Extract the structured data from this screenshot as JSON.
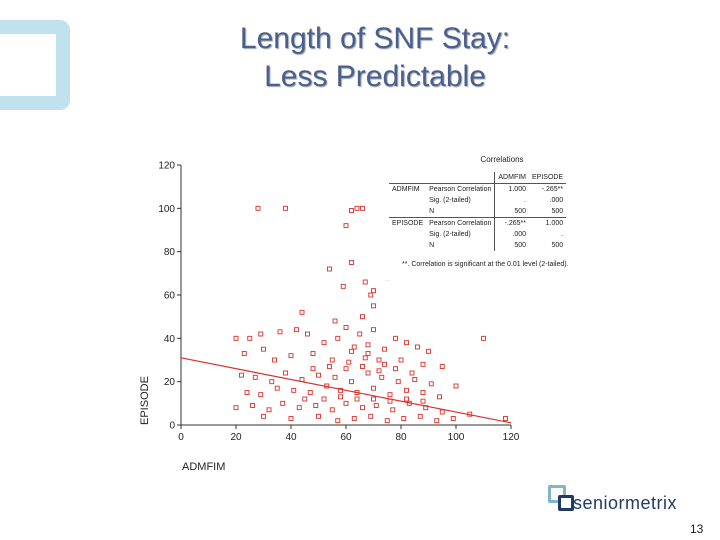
{
  "title_lines": [
    "Length of SNF Stay:",
    "Less Predictable"
  ],
  "chart_data": {
    "type": "scatter",
    "xlabel": "ADMFIM",
    "ylabel": "EPISODE",
    "xlim": [
      0,
      120
    ],
    "ylim": [
      0,
      120
    ],
    "x_ticks": [
      0,
      20,
      40,
      60,
      80,
      100,
      120
    ],
    "y_ticks": [
      0,
      20,
      40,
      60,
      80,
      100,
      120
    ],
    "marker_color": "#d9302a",
    "fit_line": {
      "x": [
        0,
        120
      ],
      "y": [
        31,
        1
      ]
    },
    "points": [
      [
        28,
        100
      ],
      [
        38,
        100
      ],
      [
        62,
        99
      ],
      [
        64,
        100
      ],
      [
        66,
        100
      ],
      [
        60,
        92
      ],
      [
        54,
        72
      ],
      [
        62,
        75
      ],
      [
        59,
        64
      ],
      [
        67,
        66
      ],
      [
        70,
        62
      ],
      [
        69,
        60
      ],
      [
        75,
        68
      ],
      [
        110,
        40
      ],
      [
        20,
        40
      ],
      [
        25,
        40
      ],
      [
        29,
        42
      ],
      [
        36,
        43
      ],
      [
        42,
        44
      ],
      [
        46,
        42
      ],
      [
        60,
        45
      ],
      [
        65,
        42
      ],
      [
        70,
        44
      ],
      [
        78,
        40
      ],
      [
        52,
        38
      ],
      [
        57,
        40
      ],
      [
        63,
        36
      ],
      [
        68,
        37
      ],
      [
        74,
        35
      ],
      [
        82,
        38
      ],
      [
        86,
        36
      ],
      [
        90,
        34
      ],
      [
        23,
        33
      ],
      [
        30,
        35
      ],
      [
        34,
        30
      ],
      [
        40,
        32
      ],
      [
        48,
        33
      ],
      [
        55,
        30
      ],
      [
        61,
        29
      ],
      [
        67,
        31
      ],
      [
        72,
        30
      ],
      [
        80,
        30
      ],
      [
        88,
        28
      ],
      [
        95,
        27
      ],
      [
        22,
        23
      ],
      [
        27,
        22
      ],
      [
        33,
        20
      ],
      [
        38,
        24
      ],
      [
        44,
        21
      ],
      [
        50,
        23
      ],
      [
        56,
        22
      ],
      [
        62,
        20
      ],
      [
        68,
        24
      ],
      [
        73,
        22
      ],
      [
        79,
        20
      ],
      [
        85,
        21
      ],
      [
        91,
        19
      ],
      [
        100,
        18
      ],
      [
        24,
        15
      ],
      [
        29,
        14
      ],
      [
        35,
        17
      ],
      [
        41,
        16
      ],
      [
        47,
        15
      ],
      [
        53,
        18
      ],
      [
        58,
        16
      ],
      [
        64,
        15
      ],
      [
        70,
        17
      ],
      [
        76,
        14
      ],
      [
        82,
        16
      ],
      [
        88,
        15
      ],
      [
        94,
        13
      ],
      [
        20,
        8
      ],
      [
        26,
        9
      ],
      [
        32,
        7
      ],
      [
        37,
        10
      ],
      [
        43,
        8
      ],
      [
        49,
        9
      ],
      [
        55,
        7
      ],
      [
        60,
        10
      ],
      [
        66,
        8
      ],
      [
        71,
        9
      ],
      [
        77,
        7
      ],
      [
        83,
        10
      ],
      [
        89,
        8
      ],
      [
        95,
        6
      ],
      [
        105,
        5
      ],
      [
        118,
        3
      ],
      [
        30,
        4
      ],
      [
        40,
        3
      ],
      [
        50,
        4
      ],
      [
        57,
        2
      ],
      [
        63,
        3
      ],
      [
        69,
        4
      ],
      [
        75,
        2
      ],
      [
        81,
        3
      ],
      [
        87,
        4
      ],
      [
        93,
        2
      ],
      [
        99,
        3
      ],
      [
        45,
        12
      ],
      [
        52,
        12
      ],
      [
        58,
        13
      ],
      [
        64,
        12
      ],
      [
        70,
        12
      ],
      [
        76,
        11
      ],
      [
        82,
        12
      ],
      [
        88,
        11
      ],
      [
        48,
        26
      ],
      [
        54,
        27
      ],
      [
        60,
        26
      ],
      [
        66,
        27
      ],
      [
        72,
        25
      ],
      [
        78,
        26
      ],
      [
        84,
        24
      ],
      [
        62,
        34
      ],
      [
        68,
        33
      ],
      [
        74,
        28
      ],
      [
        56,
        48
      ],
      [
        66,
        50
      ],
      [
        44,
        52
      ],
      [
        70,
        55
      ]
    ]
  },
  "correlations": {
    "title": "Correlations",
    "columns": [
      "ADMFIM",
      "EPISODE"
    ],
    "rows": [
      {
        "var": "ADMFIM",
        "stats": [
          {
            "stat": "Pearson Correlation",
            "values": [
              "1.000",
              "-.265**"
            ]
          },
          {
            "stat": "Sig. (2-tailed)",
            "values": [
              ".",
              ".000"
            ]
          },
          {
            "stat": "N",
            "values": [
              "500",
              "500"
            ]
          }
        ]
      },
      {
        "var": "EPISODE",
        "stats": [
          {
            "stat": "Pearson Correlation",
            "values": [
              "-.265**",
              "1.000"
            ]
          },
          {
            "stat": "Sig. (2-tailed)",
            "values": [
              ".000",
              "."
            ]
          },
          {
            "stat": "N",
            "values": [
              "500",
              "500"
            ]
          }
        ]
      }
    ],
    "note": "**. Correlation is significant at the 0.01 level (2-tailed)."
  },
  "logo_text": "seniormetrix",
  "page_number": "13"
}
